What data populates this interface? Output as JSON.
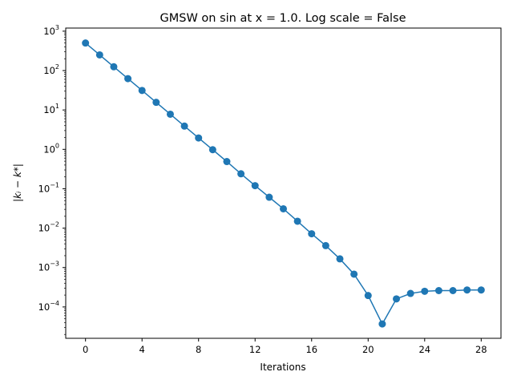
{
  "chart_data": {
    "type": "line",
    "title": "GMSW on sin at x = 1.0. Log scale = False",
    "xlabel": "Iterations",
    "ylabel": "|kᵢ − k*|",
    "yscale": "log",
    "xlim": [
      -1.4,
      29.4
    ],
    "ylim": [
      1.6e-05,
      1200
    ],
    "xticks": [
      0,
      4,
      8,
      12,
      16,
      20,
      24,
      28
    ],
    "yticks": [
      -4,
      -3,
      -2,
      -1,
      0,
      1,
      2,
      3
    ],
    "grid": false,
    "color": "#1f77b4",
    "marker": "circle",
    "x": [
      0,
      1,
      2,
      3,
      4,
      5,
      6,
      7,
      8,
      9,
      10,
      11,
      12,
      13,
      14,
      15,
      16,
      17,
      18,
      19,
      20,
      21,
      22,
      23,
      24,
      25,
      26,
      27,
      28
    ],
    "values": [
      500,
      250,
      125,
      62.5,
      31.3,
      15.6,
      7.8,
      3.9,
      1.95,
      0.98,
      0.49,
      0.24,
      0.12,
      0.061,
      0.031,
      0.015,
      0.0072,
      0.0036,
      0.00166,
      0.00068,
      0.000195,
      3.7e-05,
      0.00016,
      0.00022,
      0.00025,
      0.00026,
      0.00026,
      0.00027,
      0.00027
    ]
  }
}
